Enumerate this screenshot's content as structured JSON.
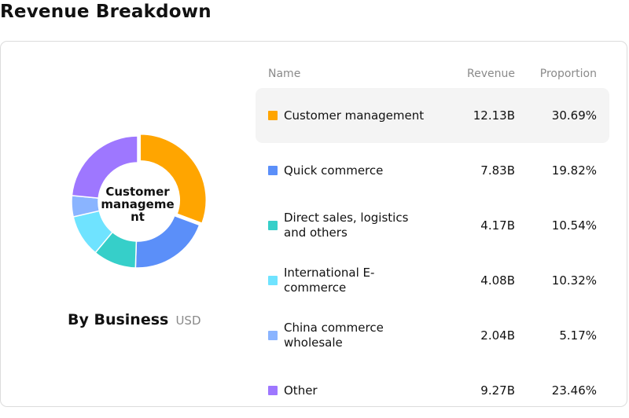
{
  "page_title": "Revenue Breakdown",
  "chart_data": {
    "type": "pie",
    "subtype": "donut",
    "title": "By Business",
    "unit": "USD",
    "center_label": [
      "Customer",
      "manageme",
      "nt"
    ],
    "columns": {
      "name": "Name",
      "revenue": "Revenue",
      "proportion": "Proportion"
    },
    "slices": [
      {
        "name": "Customer management",
        "revenue": "12.13B",
        "proportion": "30.69%",
        "value": 30.69,
        "color": "#FFA500",
        "highlighted": true
      },
      {
        "name": "Quick commerce",
        "revenue": "7.83B",
        "proportion": "19.82%",
        "value": 19.82,
        "color": "#5B8FF9"
      },
      {
        "name": "Direct sales, logistics and others",
        "revenue": "4.17B",
        "proportion": "10.54%",
        "value": 10.54,
        "color": "#36CFC9"
      },
      {
        "name": "International E-commerce",
        "revenue": "4.08B",
        "proportion": "10.32%",
        "value": 10.32,
        "color": "#6FE3FF"
      },
      {
        "name": "China commerce wholesale",
        "revenue": "2.04B",
        "proportion": "5.17%",
        "value": 5.17,
        "color": "#8AB4FF"
      },
      {
        "name": "Other",
        "revenue": "9.27B",
        "proportion": "23.46%",
        "value": 23.46,
        "color": "#9E77FF"
      }
    ]
  }
}
